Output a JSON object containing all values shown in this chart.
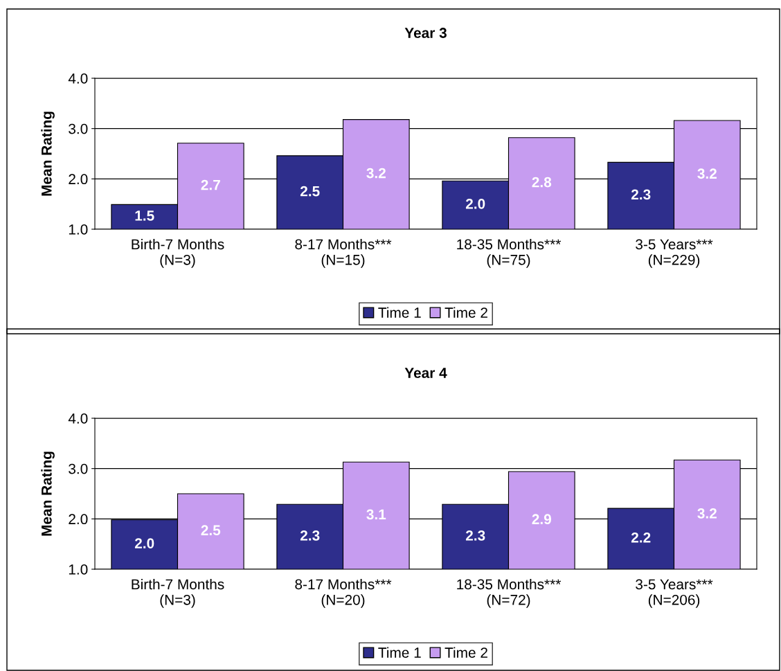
{
  "chart_data": [
    {
      "type": "bar",
      "title": "Year 3",
      "ylabel": "Mean Rating",
      "categories": [
        "Birth-7 Months\n(N=3)",
        "8-17 Months***\n(N=15)",
        "18-35 Months***\n(N=75)",
        "3-5 Years***\n(N=229)"
      ],
      "series": [
        {
          "name": "Time 1",
          "color": "#2e2e8c",
          "values": [
            1.49,
            2.46,
            1.96,
            2.33
          ],
          "value_labels": [
            "1.5",
            "2.5",
            "2.0",
            "2.3"
          ]
        },
        {
          "name": "Time 2",
          "color": "#c69cf0",
          "values": [
            2.71,
            3.18,
            2.82,
            3.16
          ],
          "value_labels": [
            "2.7",
            "3.2",
            "2.8",
            "3.2"
          ]
        }
      ],
      "ylim": [
        1.0,
        4.0
      ],
      "yticks": [
        {
          "value": 1,
          "label": "1.0"
        },
        {
          "value": 2,
          "label": "2.0"
        },
        {
          "value": 3,
          "label": "3.0"
        },
        {
          "value": 4,
          "label": "4.0"
        }
      ],
      "grid": "y",
      "legend": "bottom"
    },
    {
      "type": "bar",
      "title": "Year 4",
      "ylabel": "Mean Rating",
      "categories": [
        "Birth-7 Months\n(N=3)",
        "8-17 Months***\n(N=20)",
        "18-35 Months***\n(N=72)",
        "3-5 Years***\n(N=206)"
      ],
      "series": [
        {
          "name": "Time 1",
          "color": "#2e2e8c",
          "values": [
            1.98,
            2.29,
            2.29,
            2.21
          ],
          "value_labels": [
            "2.0",
            "2.3",
            "2.3",
            "2.2"
          ]
        },
        {
          "name": "Time 2",
          "color": "#c69cf0",
          "values": [
            2.5,
            3.13,
            2.94,
            3.17
          ],
          "value_labels": [
            "2.5",
            "3.1",
            "2.9",
            "3.2"
          ]
        }
      ],
      "ylim": [
        1.0,
        4.0
      ],
      "yticks": [
        {
          "value": 1,
          "label": "1.0"
        },
        {
          "value": 2,
          "label": "2.0"
        },
        {
          "value": 3,
          "label": "3.0"
        },
        {
          "value": 4,
          "label": "4.0"
        }
      ],
      "grid": "y",
      "legend": "bottom"
    }
  ]
}
